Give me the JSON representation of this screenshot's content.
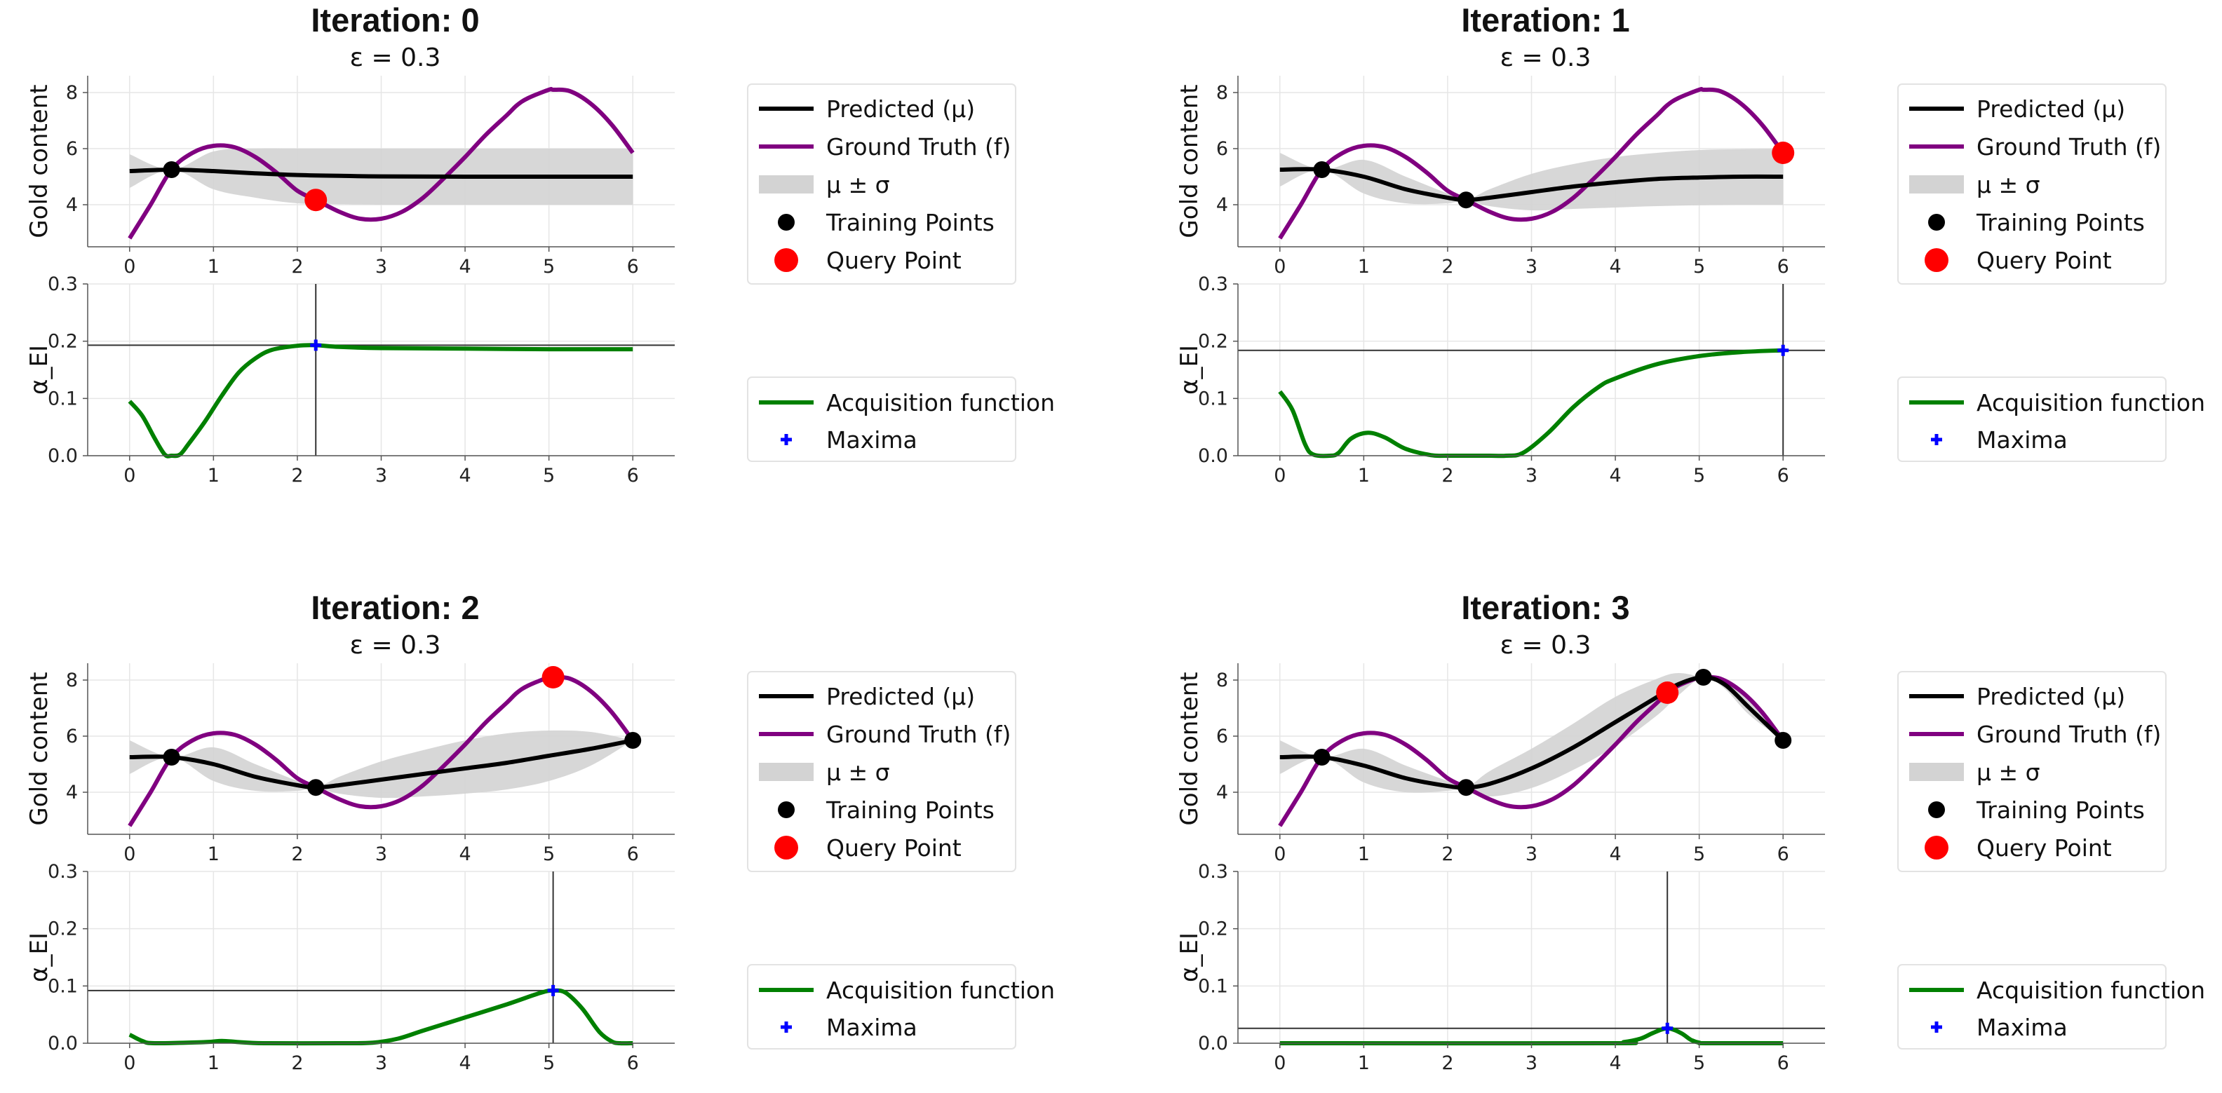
{
  "chart_data": [
    {
      "type": "line",
      "title": "Iteration: 0",
      "subtitle": "ε = 0.3",
      "top": {
        "ylabel": "Gold content",
        "xlim": [
          -0.5,
          6.5
        ],
        "ylim": [
          2.5,
          8.6
        ],
        "xticks": [
          "0",
          "1",
          "2",
          "3",
          "4",
          "5",
          "6"
        ],
        "yticks": [
          "4",
          "6",
          "8"
        ],
        "training_points": [
          [
            0.5,
            5.25
          ]
        ],
        "query_point": [
          2.22,
          4.17
        ],
        "mean": [
          [
            0,
            5.2
          ],
          [
            0.5,
            5.25
          ],
          [
            1,
            5.2
          ],
          [
            1.5,
            5.12
          ],
          [
            2,
            5.06
          ],
          [
            2.5,
            5.03
          ],
          [
            3,
            5.01
          ],
          [
            4,
            5.0
          ],
          [
            5,
            5.0
          ],
          [
            6,
            5.0
          ]
        ],
        "band": [
          [
            0,
            5.8,
            4.6
          ],
          [
            0.5,
            5.25,
            5.25
          ],
          [
            1,
            5.9,
            4.55
          ],
          [
            1.5,
            6.0,
            4.25
          ],
          [
            2,
            6.0,
            4.05
          ],
          [
            2.5,
            6.0,
            4.02
          ],
          [
            3,
            6.0,
            4.0
          ],
          [
            4,
            6.0,
            4.0
          ],
          [
            5,
            6.0,
            4.0
          ],
          [
            6,
            6.0,
            4.0
          ]
        ]
      },
      "bottom": {
        "ylabel": "α_EI",
        "xlim": [
          -0.5,
          6.5
        ],
        "ylim": [
          0,
          0.3
        ],
        "xticks": [
          "0",
          "1",
          "2",
          "3",
          "4",
          "5",
          "6"
        ],
        "yticks": [
          "0.0",
          "0.1",
          "0.2",
          "0.3"
        ],
        "acquisition": [
          [
            0,
            0.095
          ],
          [
            0.15,
            0.07
          ],
          [
            0.3,
            0.03
          ],
          [
            0.42,
            0.002
          ],
          [
            0.5,
            0
          ],
          [
            0.6,
            0.002
          ],
          [
            0.7,
            0.02
          ],
          [
            0.9,
            0.06
          ],
          [
            1.1,
            0.105
          ],
          [
            1.3,
            0.145
          ],
          [
            1.5,
            0.17
          ],
          [
            1.7,
            0.185
          ],
          [
            2,
            0.192
          ],
          [
            2.22,
            0.193
          ],
          [
            2.5,
            0.19
          ],
          [
            3,
            0.188
          ],
          [
            4,
            0.187
          ],
          [
            5,
            0.186
          ],
          [
            6,
            0.186
          ]
        ],
        "maxima": [
          2.22,
          0.193
        ]
      },
      "legend_top": [
        "Predicted (μ)",
        "Ground Truth (f)",
        "μ ± σ",
        "Training Points",
        "Query Point"
      ],
      "legend_bottom": [
        "Acquisition function",
        "Maxima"
      ]
    },
    {
      "type": "line",
      "title": "Iteration: 1",
      "subtitle": "ε = 0.3",
      "top": {
        "ylabel": "Gold content",
        "xlim": [
          -0.5,
          6.5
        ],
        "ylim": [
          2.5,
          8.6
        ],
        "xticks": [
          "0",
          "1",
          "2",
          "3",
          "4",
          "5",
          "6"
        ],
        "yticks": [
          "4",
          "6",
          "8"
        ],
        "training_points": [
          [
            0.5,
            5.25
          ],
          [
            2.22,
            4.17
          ]
        ],
        "query_point": [
          6.0,
          5.85
        ],
        "mean": [
          [
            0,
            5.25
          ],
          [
            0.5,
            5.25
          ],
          [
            1,
            5.0
          ],
          [
            1.5,
            4.55
          ],
          [
            2,
            4.25
          ],
          [
            2.22,
            4.17
          ],
          [
            2.5,
            4.25
          ],
          [
            3,
            4.45
          ],
          [
            3.5,
            4.65
          ],
          [
            4,
            4.8
          ],
          [
            4.5,
            4.92
          ],
          [
            5,
            4.97
          ],
          [
            5.5,
            5.0
          ],
          [
            6,
            5.0
          ]
        ],
        "band": [
          [
            0,
            5.85,
            4.65
          ],
          [
            0.5,
            5.25,
            5.25
          ],
          [
            1,
            5.6,
            4.4
          ],
          [
            1.5,
            5.0,
            4.05
          ],
          [
            2,
            4.4,
            4.05
          ],
          [
            2.22,
            4.17,
            4.17
          ],
          [
            2.5,
            4.55,
            3.95
          ],
          [
            3,
            5.1,
            3.8
          ],
          [
            3.5,
            5.45,
            3.85
          ],
          [
            4,
            5.7,
            3.9
          ],
          [
            4.5,
            5.85,
            3.95
          ],
          [
            5,
            5.95,
            3.98
          ],
          [
            5.5,
            5.98,
            4.0
          ],
          [
            6,
            6.0,
            4.0
          ]
        ]
      },
      "bottom": {
        "ylabel": "α_EI",
        "xlim": [
          -0.5,
          6.5
        ],
        "ylim": [
          0,
          0.3
        ],
        "xticks": [
          "0",
          "1",
          "2",
          "3",
          "4",
          "5",
          "6"
        ],
        "yticks": [
          "0.0",
          "0.1",
          "0.2",
          "0.3"
        ],
        "acquisition": [
          [
            0,
            0.112
          ],
          [
            0.15,
            0.08
          ],
          [
            0.3,
            0.02
          ],
          [
            0.4,
            0.002
          ],
          [
            0.6,
            0
          ],
          [
            0.7,
            0.005
          ],
          [
            0.85,
            0.03
          ],
          [
            1.05,
            0.04
          ],
          [
            1.25,
            0.032
          ],
          [
            1.5,
            0.012
          ],
          [
            1.8,
            0.001
          ],
          [
            2.0,
            0
          ],
          [
            2.5,
            0
          ],
          [
            2.7,
            0
          ],
          [
            2.9,
            0.005
          ],
          [
            3.2,
            0.04
          ],
          [
            3.5,
            0.085
          ],
          [
            3.8,
            0.12
          ],
          [
            4.0,
            0.135
          ],
          [
            4.5,
            0.16
          ],
          [
            5.0,
            0.174
          ],
          [
            5.5,
            0.181
          ],
          [
            6.0,
            0.184
          ]
        ],
        "maxima": [
          6.0,
          0.184
        ]
      },
      "legend_top": [
        "Predicted (μ)",
        "Ground Truth (f)",
        "μ ± σ",
        "Training Points",
        "Query Point"
      ],
      "legend_bottom": [
        "Acquisition function",
        "Maxima"
      ]
    },
    {
      "type": "line",
      "title": "Iteration: 2",
      "subtitle": "ε = 0.3",
      "top": {
        "ylabel": "Gold content",
        "xlim": [
          -0.5,
          6.5
        ],
        "ylim": [
          2.5,
          8.6
        ],
        "xticks": [
          "0",
          "1",
          "2",
          "3",
          "4",
          "5",
          "6"
        ],
        "yticks": [
          "4",
          "6",
          "8"
        ],
        "training_points": [
          [
            0.5,
            5.25
          ],
          [
            2.22,
            4.17
          ],
          [
            6.0,
            5.85
          ]
        ],
        "query_point": [
          5.05,
          8.1
        ],
        "mean": [
          [
            0,
            5.25
          ],
          [
            0.5,
            5.25
          ],
          [
            1,
            5.0
          ],
          [
            1.5,
            4.55
          ],
          [
            2,
            4.25
          ],
          [
            2.22,
            4.17
          ],
          [
            2.5,
            4.25
          ],
          [
            3,
            4.45
          ],
          [
            3.5,
            4.65
          ],
          [
            4,
            4.85
          ],
          [
            4.5,
            5.05
          ],
          [
            5,
            5.3
          ],
          [
            5.5,
            5.55
          ],
          [
            6,
            5.85
          ]
        ],
        "band": [
          [
            0,
            5.85,
            4.65
          ],
          [
            0.5,
            5.25,
            5.25
          ],
          [
            1,
            5.6,
            4.4
          ],
          [
            1.5,
            5.0,
            4.05
          ],
          [
            2,
            4.4,
            4.05
          ],
          [
            2.22,
            4.17,
            4.17
          ],
          [
            2.5,
            4.55,
            3.95
          ],
          [
            3,
            5.1,
            3.8
          ],
          [
            3.5,
            5.5,
            3.85
          ],
          [
            4,
            5.85,
            3.95
          ],
          [
            4.5,
            6.1,
            4.1
          ],
          [
            5,
            6.2,
            4.4
          ],
          [
            5.5,
            6.15,
            4.95
          ],
          [
            6,
            5.85,
            5.85
          ]
        ]
      },
      "bottom": {
        "ylabel": "α_EI",
        "xlim": [
          -0.5,
          6.5
        ],
        "ylim": [
          0,
          0.3
        ],
        "xticks": [
          "0",
          "1",
          "2",
          "3",
          "4",
          "5",
          "6"
        ],
        "yticks": [
          "0.0",
          "0.1",
          "0.2",
          "0.3"
        ],
        "acquisition": [
          [
            0,
            0.015
          ],
          [
            0.15,
            0.004
          ],
          [
            0.3,
            0
          ],
          [
            0.9,
            0.002
          ],
          [
            1.1,
            0.004
          ],
          [
            1.3,
            0.002
          ],
          [
            1.6,
            0
          ],
          [
            2.5,
            0
          ],
          [
            2.9,
            0.001
          ],
          [
            3.2,
            0.008
          ],
          [
            3.5,
            0.022
          ],
          [
            4.0,
            0.045
          ],
          [
            4.5,
            0.068
          ],
          [
            4.9,
            0.088
          ],
          [
            5.05,
            0.092
          ],
          [
            5.2,
            0.088
          ],
          [
            5.4,
            0.06
          ],
          [
            5.6,
            0.02
          ],
          [
            5.75,
            0.003
          ],
          [
            5.85,
            0
          ],
          [
            6,
            0
          ]
        ],
        "maxima": [
          5.05,
          0.092
        ]
      },
      "legend_top": [
        "Predicted (μ)",
        "Ground Truth (f)",
        "μ ± σ",
        "Training Points",
        "Query Point"
      ],
      "legend_bottom": [
        "Acquisition function",
        "Maxima"
      ]
    },
    {
      "type": "line",
      "title": "Iteration: 3",
      "subtitle": "ε = 0.3",
      "top": {
        "ylabel": "Gold content",
        "xlim": [
          -0.5,
          6.5
        ],
        "ylim": [
          2.5,
          8.6
        ],
        "xticks": [
          "0",
          "1",
          "2",
          "3",
          "4",
          "5",
          "6"
        ],
        "yticks": [
          "4",
          "6",
          "8"
        ],
        "training_points": [
          [
            0.5,
            5.25
          ],
          [
            2.22,
            4.17
          ],
          [
            5.05,
            8.1
          ],
          [
            6.0,
            5.85
          ]
        ],
        "query_point": [
          4.62,
          7.55
        ],
        "mean": [
          [
            0,
            5.25
          ],
          [
            0.5,
            5.25
          ],
          [
            1,
            4.95
          ],
          [
            1.5,
            4.5
          ],
          [
            2,
            4.22
          ],
          [
            2.22,
            4.17
          ],
          [
            2.5,
            4.3
          ],
          [
            3,
            4.85
          ],
          [
            3.5,
            5.6
          ],
          [
            4,
            6.5
          ],
          [
            4.5,
            7.4
          ],
          [
            4.75,
            7.85
          ],
          [
            5.05,
            8.1
          ],
          [
            5.3,
            7.85
          ],
          [
            5.6,
            7.0
          ],
          [
            6,
            5.85
          ]
        ],
        "band": [
          [
            0,
            5.85,
            4.65
          ],
          [
            0.5,
            5.25,
            5.25
          ],
          [
            1,
            5.55,
            4.35
          ],
          [
            1.5,
            4.95,
            4.0
          ],
          [
            2,
            4.4,
            4.05
          ],
          [
            2.22,
            4.17,
            4.17
          ],
          [
            2.5,
            4.75,
            3.85
          ],
          [
            3,
            5.55,
            4.15
          ],
          [
            3.5,
            6.45,
            4.8
          ],
          [
            4,
            7.4,
            5.65
          ],
          [
            4.5,
            8.05,
            6.75
          ],
          [
            4.75,
            8.25,
            7.45
          ],
          [
            5.05,
            8.1,
            8.1
          ],
          [
            5.3,
            8.0,
            7.7
          ],
          [
            5.6,
            7.3,
            6.75
          ],
          [
            6,
            5.85,
            5.85
          ]
        ]
      },
      "bottom": {
        "ylabel": "α_EI",
        "xlim": [
          -0.5,
          6.5
        ],
        "ylim": [
          0,
          0.3
        ],
        "xticks": [
          "0",
          "1",
          "2",
          "3",
          "4",
          "5",
          "6"
        ],
        "yticks": [
          "0.0",
          "0.1",
          "0.2",
          "0.3"
        ],
        "acquisition": [
          [
            0,
            0
          ],
          [
            3.9,
            0
          ],
          [
            4.1,
            0.002
          ],
          [
            4.3,
            0.008
          ],
          [
            4.45,
            0.018
          ],
          [
            4.62,
            0.026
          ],
          [
            4.78,
            0.018
          ],
          [
            4.9,
            0.006
          ],
          [
            5.0,
            0.001
          ],
          [
            5.1,
            0
          ],
          [
            6,
            0
          ]
        ],
        "maxima": [
          4.62,
          0.026
        ]
      },
      "legend_top": [
        "Predicted (μ)",
        "Ground Truth (f)",
        "μ ± σ",
        "Training Points",
        "Query Point"
      ],
      "legend_bottom": [
        "Acquisition function",
        "Maxima"
      ]
    }
  ],
  "ground_truth": [
    [
      0,
      2.8
    ],
    [
      0.25,
      4.0
    ],
    [
      0.5,
      5.25
    ],
    [
      0.75,
      5.85
    ],
    [
      1.0,
      6.1
    ],
    [
      1.25,
      6.05
    ],
    [
      1.5,
      5.7
    ],
    [
      1.75,
      5.15
    ],
    [
      2.0,
      4.5
    ],
    [
      2.22,
      4.17
    ],
    [
      2.5,
      3.75
    ],
    [
      2.75,
      3.5
    ],
    [
      3.0,
      3.5
    ],
    [
      3.25,
      3.75
    ],
    [
      3.5,
      4.25
    ],
    [
      3.75,
      4.95
    ],
    [
      4.0,
      5.7
    ],
    [
      4.25,
      6.5
    ],
    [
      4.5,
      7.2
    ],
    [
      4.62,
      7.55
    ],
    [
      4.75,
      7.8
    ],
    [
      5.0,
      8.1
    ],
    [
      5.05,
      8.1
    ],
    [
      5.25,
      8.05
    ],
    [
      5.5,
      7.6
    ],
    [
      5.75,
      6.85
    ],
    [
      6.0,
      5.85
    ]
  ],
  "colors": {
    "predicted": "#000000",
    "ground_truth": "#800080",
    "band": "#d3d3d3",
    "training": "#000000",
    "query": "#ff0000",
    "acquisition": "#008000",
    "maxima": "#0000ff",
    "grid": "#e6e6e6"
  }
}
